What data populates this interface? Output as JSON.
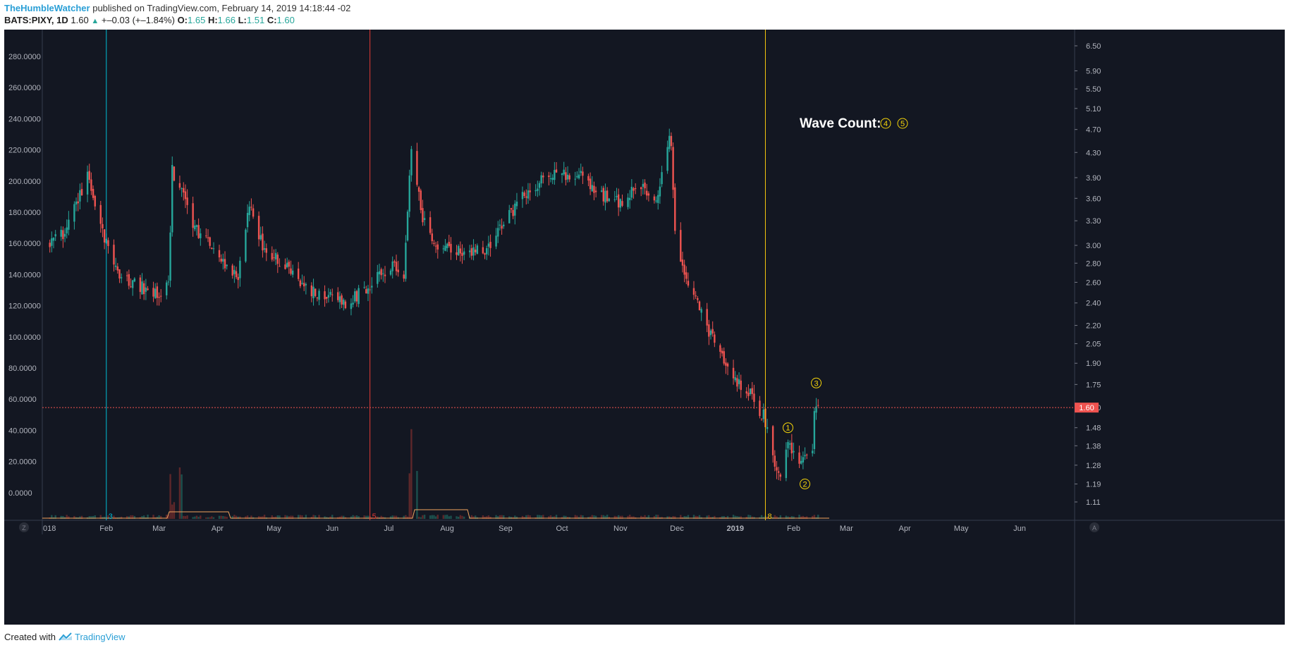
{
  "header": {
    "author": "TheHumbleWatcher",
    "published_text": "published on TradingView.com, February 14, 2019 14:18:44 -02",
    "symbol": "BATS:PIXY, 1D",
    "last": "1.60",
    "change": "+–0.03 (+–1.84%)",
    "open_label": "O:",
    "open": "1.65",
    "high_label": "H:",
    "high": "1.66",
    "low_label": "L:",
    "low": "1.51",
    "close_label": "C:",
    "close": "1.60"
  },
  "footer": {
    "created_with": "Created with",
    "brand": "TradingView"
  },
  "colors": {
    "background": "#131722",
    "up": "#26a69a",
    "down": "#ef5350",
    "cyan_line": "#00bcd4",
    "red_line": "#e53935",
    "yellow_line": "#f9c80e",
    "annotation": "#f5d50a"
  },
  "chart_data": {
    "type": "candlestick",
    "title": "",
    "x_ticks": [
      "2018",
      "Feb",
      "Mar",
      "Apr",
      "May",
      "Jun",
      "Jul",
      "Aug",
      "Sep",
      "Oct",
      "Nov",
      "Dec",
      "2019",
      "Feb",
      "Mar",
      "Apr",
      "May",
      "Jun"
    ],
    "left_axis": {
      "ticks": [
        "280.0000",
        "260.0000",
        "240.0000",
        "220.0000",
        "200.0000",
        "180.0000",
        "160.0000",
        "140.0000",
        "120.0000",
        "100.0000",
        "80.0000",
        "60.0000",
        "40.0000",
        "20.0000",
        "0.0000"
      ]
    },
    "right_axis": {
      "scale": "log",
      "ticks": [
        "6.50",
        "5.90",
        "5.50",
        "5.10",
        "4.70",
        "4.30",
        "3.90",
        "3.60",
        "3.30",
        "3.00",
        "2.80",
        "2.60",
        "2.40",
        "2.20",
        "2.05",
        "1.90",
        "1.75",
        "1.60",
        "1.48",
        "1.38",
        "1.28",
        "1.19",
        "1.11"
      ]
    },
    "price_line": {
      "value": 1.6,
      "label": "1.60"
    },
    "price_keypoints": [
      [
        "2018-01-02",
        3.05
      ],
      [
        "2018-01-10",
        3.15
      ],
      [
        "2018-01-22",
        3.9
      ],
      [
        "2018-01-30",
        3.15
      ],
      [
        "2018-02-08",
        2.65
      ],
      [
        "2018-02-20",
        2.55
      ],
      [
        "2018-02-28",
        2.5
      ],
      [
        "2018-03-06",
        2.55
      ],
      [
        "2018-03-08",
        4.0
      ],
      [
        "2018-03-12",
        3.8
      ],
      [
        "2018-03-20",
        3.2
      ],
      [
        "2018-04-05",
        2.8
      ],
      [
        "2018-04-12",
        2.65
      ],
      [
        "2018-04-18",
        3.5
      ],
      [
        "2018-04-25",
        3.0
      ],
      [
        "2018-05-08",
        2.75
      ],
      [
        "2018-05-22",
        2.5
      ],
      [
        "2018-06-08",
        2.4
      ],
      [
        "2018-06-20",
        2.55
      ],
      [
        "2018-07-03",
        2.8
      ],
      [
        "2018-07-09",
        2.6
      ],
      [
        "2018-07-13",
        4.4
      ],
      [
        "2018-07-19",
        3.3
      ],
      [
        "2018-07-26",
        3.0
      ],
      [
        "2018-08-09",
        2.95
      ],
      [
        "2018-08-22",
        2.92
      ],
      [
        "2018-08-31",
        3.3
      ],
      [
        "2018-09-10",
        3.6
      ],
      [
        "2018-09-20",
        3.85
      ],
      [
        "2018-09-28",
        3.95
      ],
      [
        "2018-10-10",
        3.95
      ],
      [
        "2018-10-18",
        3.7
      ],
      [
        "2018-11-01",
        3.55
      ],
      [
        "2018-11-12",
        3.8
      ],
      [
        "2018-11-20",
        3.5
      ],
      [
        "2018-11-27",
        4.6
      ],
      [
        "2018-11-28",
        4.3
      ],
      [
        "2018-11-30",
        3.1
      ],
      [
        "2018-12-07",
        2.6
      ],
      [
        "2018-12-14",
        2.3
      ],
      [
        "2018-12-21",
        2.05
      ],
      [
        "2018-12-31",
        1.78
      ],
      [
        "2019-01-08",
        1.7
      ],
      [
        "2019-01-16",
        1.55
      ],
      [
        "2019-01-22",
        1.28
      ],
      [
        "2019-01-25",
        1.22
      ],
      [
        "2019-01-29",
        1.42
      ],
      [
        "2019-02-01",
        1.32
      ],
      [
        "2019-02-06",
        1.29
      ],
      [
        "2019-02-11",
        1.36
      ],
      [
        "2019-02-12",
        1.58
      ],
      [
        "2019-02-14",
        1.6
      ]
    ],
    "annotations": [
      {
        "text": "Wave Count:",
        "markers": [
          "4",
          "5"
        ]
      },
      {
        "marker": "1",
        "date": "2019-01-29",
        "value": 1.48
      },
      {
        "marker": "2",
        "date": "2019-02-07",
        "value": 1.19
      },
      {
        "marker": "3",
        "date": "2019-02-13",
        "value": 1.76
      }
    ],
    "vertical_lines": [
      {
        "date": "2018-02-01",
        "label": "3",
        "color": "#00bcd4"
      },
      {
        "date": "2018-06-21",
        "label": "5",
        "color": "#e53935"
      },
      {
        "date": "2019-01-17",
        "label": "8",
        "color": "#f9c80e"
      }
    ],
    "grid": false
  }
}
